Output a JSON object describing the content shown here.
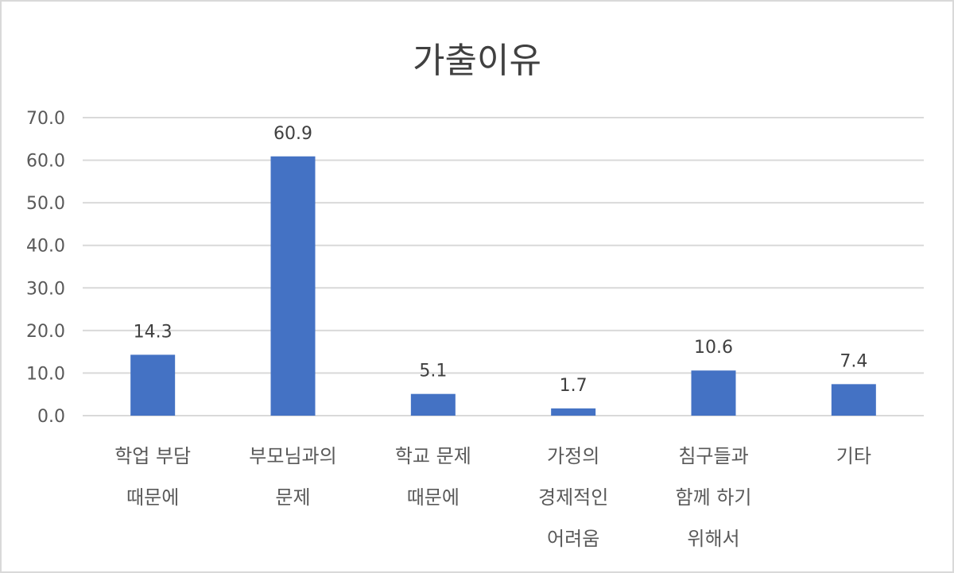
{
  "chart_data": {
    "type": "bar",
    "title": "가출이유",
    "xlabel": "",
    "ylabel": "",
    "ylim": [
      0,
      70
    ],
    "yticks": [
      "0.0",
      "10.0",
      "20.0",
      "30.0",
      "40.0",
      "50.0",
      "60.0",
      "70.0"
    ],
    "grid": true,
    "legend": "none",
    "bar_color": "#4472C4",
    "categories": [
      [
        "학업 부담",
        "때문에"
      ],
      [
        "부모님과의",
        "문제"
      ],
      [
        "학교 문제",
        "때문에"
      ],
      [
        "가정의",
        "경제적인",
        "어려움"
      ],
      [
        "침구들과",
        "함께 하기",
        "위해서"
      ],
      [
        "기타"
      ]
    ],
    "values": [
      14.3,
      60.9,
      5.1,
      1.7,
      10.6,
      7.4
    ],
    "data_labels": [
      "14.3",
      "60.9",
      "5.1",
      "1.7",
      "10.6",
      "7.4"
    ]
  }
}
